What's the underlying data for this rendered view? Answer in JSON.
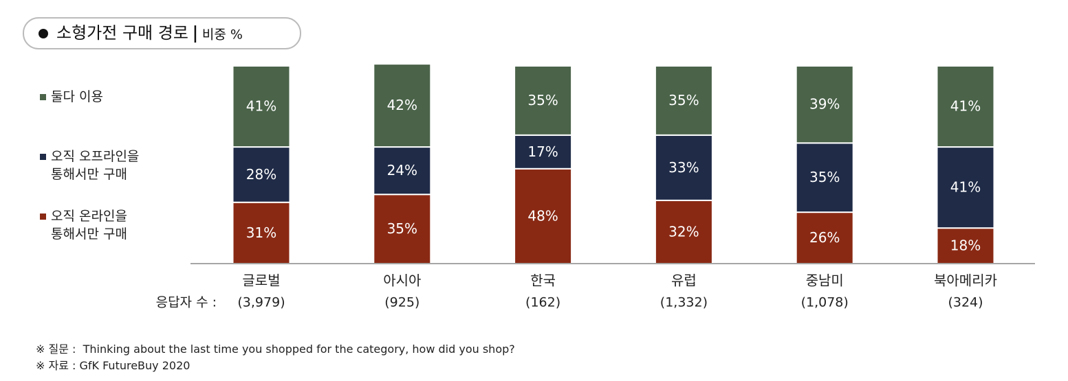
{
  "chart_data": {
    "type": "stacked_bar",
    "title": "소형가전 구매 경로",
    "subtitle": "비중 %",
    "categories": [
      "글로벌",
      "아시아",
      "한국",
      "유럽",
      "중남미",
      "북아메리카"
    ],
    "respondents_label": "응답자 수 :",
    "respondents": [
      "(3,979)",
      "(925)",
      "(162)",
      "(1,332)",
      "(1,078)",
      "(324)"
    ],
    "ylim": [
      0,
      100
    ],
    "series": [
      {
        "name": "오직 온라인을\n통해서만 구매",
        "color": "#892914",
        "values": [
          31,
          35,
          48,
          32,
          26,
          18
        ],
        "value_labels": [
          "31%",
          "35%",
          "48%",
          "32%",
          "26%",
          "18%"
        ]
      },
      {
        "name": "오직 오프라인을\n통해서만 구매",
        "color": "#1f2b47",
        "values": [
          28,
          24,
          17,
          33,
          35,
          41
        ],
        "value_labels": [
          "28%",
          "24%",
          "17%",
          "33%",
          "35%",
          "41%"
        ]
      },
      {
        "name": "둘다 이용",
        "color": "#4a6349",
        "values": [
          41,
          42,
          35,
          35,
          39,
          41
        ],
        "value_labels": [
          "41%",
          "42%",
          "35%",
          "35%",
          "39%",
          "41%"
        ]
      }
    ],
    "notes": [
      "※ 질문 :  Thinking about the last time you shopped for the category, how did you shop?",
      "※ 자료 : GfK FutureBuy 2020"
    ]
  }
}
